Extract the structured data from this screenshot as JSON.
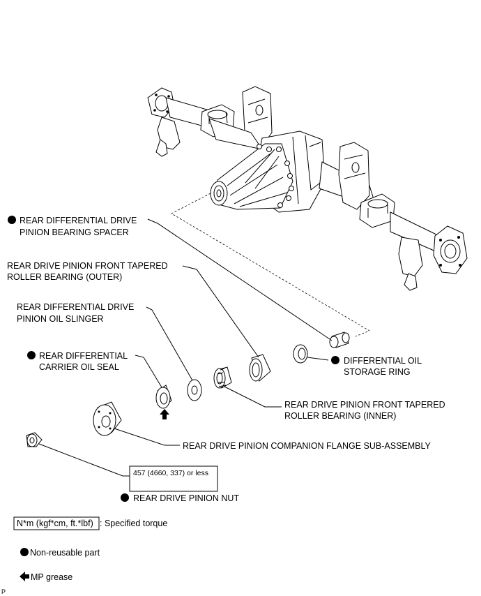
{
  "parts": {
    "spacer": [
      "REAR DIFFERENTIAL DRIVE",
      "PINION BEARING SPACER"
    ],
    "front_bearing_outer": [
      "REAR DRIVE PINION FRONT TAPERED",
      "ROLLER BEARING (OUTER)"
    ],
    "oil_slinger": [
      "REAR DIFFERENTIAL DRIVE",
      "PINION OIL SLINGER"
    ],
    "oil_seal": [
      "REAR DIFFERENTIAL",
      "CARRIER OIL SEAL"
    ],
    "storage_ring": [
      "DIFFERENTIAL OIL",
      "STORAGE RING"
    ],
    "front_bearing_inner": [
      "REAR DRIVE PINION FRONT TAPERED",
      "ROLLER BEARING (INNER)"
    ],
    "companion_flange": "REAR DRIVE PINION COMPANION FLANGE SUB-ASSEMBLY",
    "torque_value": "457 (4660, 337) or less",
    "pinion_nut": "REAR DRIVE PINION NUT"
  },
  "legend": {
    "torque_box": "N*m (kgf*cm, ft.*lbf)",
    "torque_text": ": Specified torque",
    "nonreusable_text": "Non-reusable part",
    "grease_text": "MP grease"
  },
  "corner_mark": "P",
  "colors": {
    "ink": "#000000",
    "background": "#ffffff"
  },
  "icons": [
    "non-reusable-dot-icon",
    "mp-grease-arrow-icon"
  ]
}
